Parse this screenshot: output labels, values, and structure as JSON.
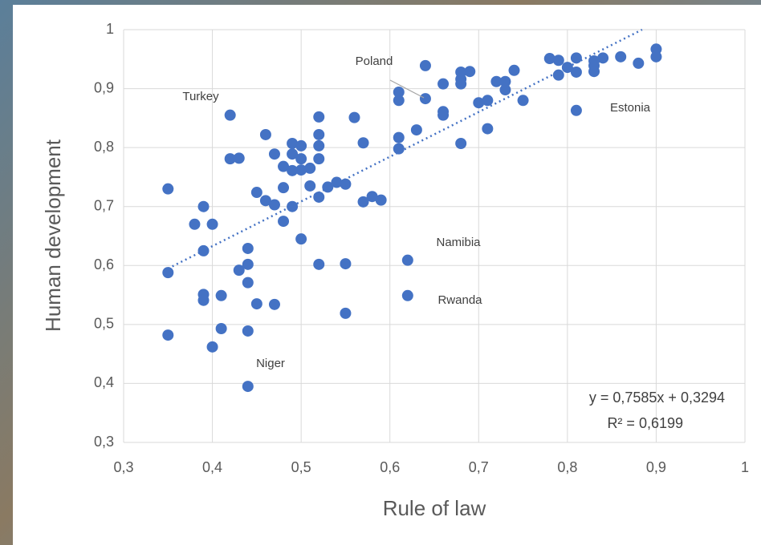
{
  "chart_data": {
    "type": "scatter",
    "x_label": "Rule of law",
    "y_label": "Human development",
    "xlim": [
      0.3,
      1
    ],
    "ylim": [
      0.3,
      1
    ],
    "xticks": [
      {
        "value": 0.3,
        "label": "0,3"
      },
      {
        "value": 0.4,
        "label": "0,4"
      },
      {
        "value": 0.5,
        "label": "0,5"
      },
      {
        "value": 0.6,
        "label": "0,6"
      },
      {
        "value": 0.7,
        "label": "0,7"
      },
      {
        "value": 0.8,
        "label": "0,8"
      },
      {
        "value": 0.9,
        "label": "0,9"
      },
      1
    ],
    "yticks": [
      {
        "value": 0.3,
        "label": "0,3"
      },
      {
        "value": 0.4,
        "label": "0,4"
      },
      {
        "value": 0.5,
        "label": "0,5"
      },
      {
        "value": 0.6,
        "label": "0,6"
      },
      {
        "value": 0.7,
        "label": "0,7"
      },
      {
        "value": 0.8,
        "label": "0,8"
      },
      {
        "value": 0.9,
        "label": "0,9"
      },
      1
    ],
    "grid": true,
    "color": "#4472c4",
    "x": [
      0.35,
      0.35,
      0.35,
      0.39,
      0.39,
      0.38,
      0.4,
      0.39,
      0.39,
      0.41,
      0.4,
      0.41,
      0.42,
      0.42,
      0.43,
      0.44,
      0.44,
      0.43,
      0.44,
      0.45,
      0.47,
      0.44,
      0.44,
      0.45,
      0.46,
      0.47,
      0.46,
      0.47,
      0.48,
      0.48,
      0.48,
      0.49,
      0.49,
      0.49,
      0.5,
      0.5,
      0.5,
      0.51,
      0.49,
      0.51,
      0.5,
      0.52,
      0.52,
      0.52,
      0.52,
      0.52,
      0.52,
      0.53,
      0.54,
      0.55,
      0.55,
      0.55,
      0.56,
      0.57,
      0.57,
      0.58,
      0.59,
      0.61,
      0.61,
      0.61,
      0.61,
      0.62,
      0.62,
      0.63,
      0.64,
      0.64,
      0.66,
      0.66,
      0.66,
      0.68,
      0.68,
      0.68,
      0.68,
      0.69,
      0.7,
      0.71,
      0.71,
      0.72,
      0.73,
      0.73,
      0.74,
      0.75,
      0.78,
      0.79,
      0.79,
      0.8,
      0.81,
      0.81,
      0.81,
      0.83,
      0.83,
      0.83,
      0.84,
      0.86,
      0.88,
      0.9,
      0.9
    ],
    "values": [
      0.73,
      0.588,
      0.482,
      0.7,
      0.625,
      0.67,
      0.67,
      0.551,
      0.541,
      0.549,
      0.462,
      0.493,
      0.855,
      0.781,
      0.782,
      0.629,
      0.602,
      0.592,
      0.571,
      0.535,
      0.534,
      0.489,
      0.395,
      0.724,
      0.71,
      0.703,
      0.822,
      0.789,
      0.768,
      0.732,
      0.675,
      0.807,
      0.789,
      0.761,
      0.803,
      0.781,
      0.762,
      0.765,
      0.7,
      0.735,
      0.645,
      0.852,
      0.822,
      0.803,
      0.781,
      0.716,
      0.602,
      0.733,
      0.741,
      0.738,
      0.603,
      0.519,
      0.851,
      0.808,
      0.708,
      0.717,
      0.711,
      0.894,
      0.88,
      0.817,
      0.798,
      0.609,
      0.549,
      0.83,
      0.939,
      0.883,
      0.908,
      0.861,
      0.855,
      0.928,
      0.916,
      0.908,
      0.807,
      0.929,
      0.876,
      0.88,
      0.832,
      0.912,
      0.912,
      0.898,
      0.931,
      0.88,
      0.951,
      0.948,
      0.923,
      0.936,
      0.952,
      0.928,
      0.863,
      0.947,
      0.939,
      0.929,
      0.952,
      0.954,
      0.943,
      0.967,
      0.954
    ],
    "trendline": {
      "slope": 0.7585,
      "intercept": 0.3294,
      "equation": "y = 0,7585x + 0,3294",
      "r_squared": "R² = 0,6199",
      "color": "#4472c4"
    },
    "annotations": [
      {
        "text": "Turkey"
      },
      {
        "text": "Poland"
      },
      {
        "text": "Estonia"
      },
      {
        "text": "Namibia"
      },
      {
        "text": "Rwanda"
      },
      {
        "text": "Niger"
      }
    ]
  }
}
